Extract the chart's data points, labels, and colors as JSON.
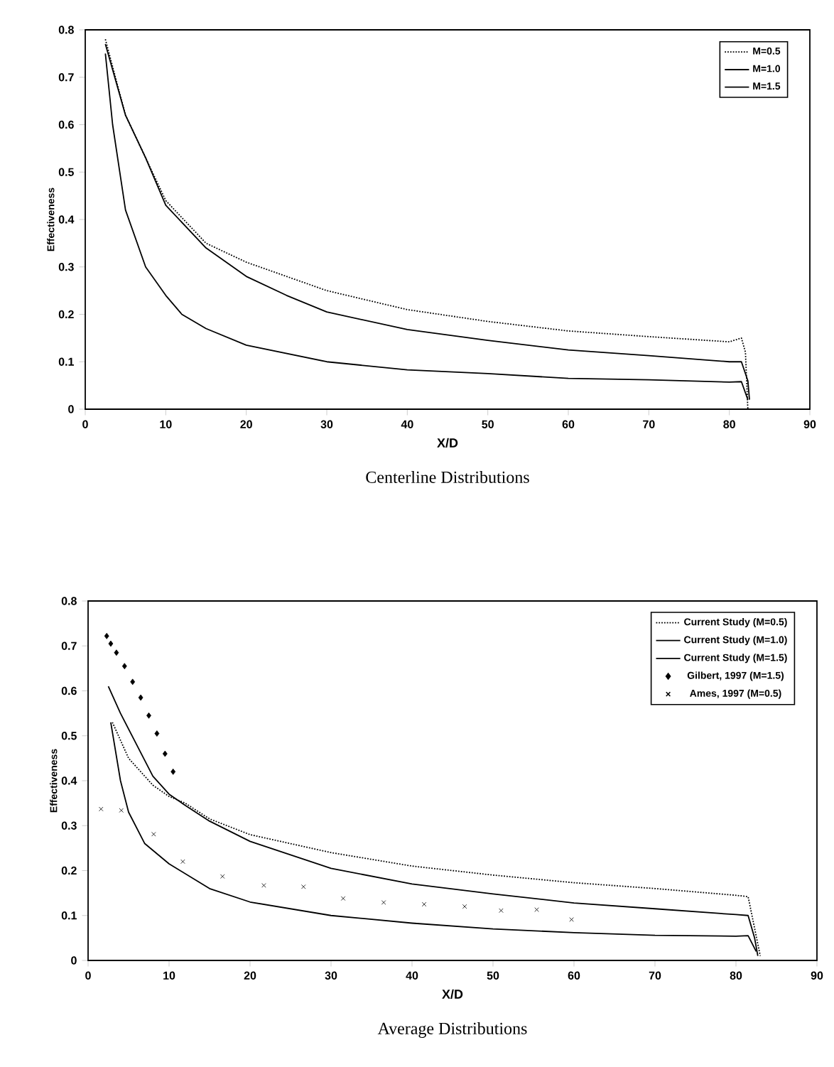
{
  "chart_data": [
    {
      "type": "line",
      "title": "Centerline Distributions",
      "xlabel": "X/D",
      "ylabel": "Effectiveness",
      "xlim": [
        0,
        90
      ],
      "ylim": [
        0,
        0.8
      ],
      "xticks": [
        0,
        10,
        20,
        30,
        40,
        50,
        60,
        70,
        80,
        90
      ],
      "yticks": [
        0,
        0.1,
        0.2,
        0.3,
        0.4,
        0.5,
        0.6,
        0.7,
        0.8
      ],
      "grid": false,
      "legend": "top right",
      "series": [
        {
          "name": "M=0.5",
          "color": "#000000",
          "line_style": "dotted",
          "x": [
            2.5,
            5,
            7.5,
            10,
            15,
            20,
            30,
            40,
            50,
            60,
            70,
            80,
            81.5,
            82,
            82.3
          ],
          "values": [
            0.78,
            0.62,
            0.53,
            0.44,
            0.35,
            0.31,
            0.25,
            0.21,
            0.185,
            0.165,
            0.153,
            0.142,
            0.15,
            0.12,
            0.0
          ]
        },
        {
          "name": "M=1.0",
          "color": "#000000",
          "line_style": "solid",
          "x": [
            2.5,
            5,
            7.5,
            10,
            15,
            20,
            25,
            30,
            40,
            50,
            60,
            70,
            80,
            81.5,
            82.3,
            82.5
          ],
          "values": [
            0.77,
            0.62,
            0.53,
            0.43,
            0.34,
            0.28,
            0.24,
            0.205,
            0.168,
            0.145,
            0.125,
            0.113,
            0.1,
            0.1,
            0.06,
            0.02
          ]
        },
        {
          "name": "M=1.5",
          "color": "#000000",
          "line_style": "solid",
          "x": [
            2.5,
            3.4,
            5,
            7.5,
            10,
            12,
            15,
            20,
            30,
            40,
            50,
            60,
            70,
            80,
            81.5,
            82.3
          ],
          "values": [
            0.75,
            0.6,
            0.42,
            0.3,
            0.24,
            0.2,
            0.17,
            0.135,
            0.1,
            0.083,
            0.075,
            0.065,
            0.062,
            0.057,
            0.058,
            0.02
          ]
        }
      ]
    },
    {
      "type": "line",
      "title": "Average Distributions",
      "xlabel": "X/D",
      "ylabel": "Effectiveness",
      "xlim": [
        0,
        90
      ],
      "ylim": [
        0,
        0.8
      ],
      "xticks": [
        0,
        10,
        20,
        30,
        40,
        50,
        60,
        70,
        80,
        90
      ],
      "yticks": [
        0,
        0.1,
        0.2,
        0.3,
        0.4,
        0.5,
        0.6,
        0.7,
        0.8
      ],
      "grid": false,
      "legend": "top right",
      "series": [
        {
          "name": "Current Study (M=0.5)",
          "color": "#000000",
          "line_style": "dotted",
          "x": [
            3,
            5,
            8,
            10,
            12,
            15,
            20,
            30,
            40,
            50,
            60,
            70,
            80,
            81.5,
            83
          ],
          "values": [
            0.53,
            0.45,
            0.39,
            0.365,
            0.35,
            0.315,
            0.28,
            0.24,
            0.21,
            0.19,
            0.173,
            0.16,
            0.145,
            0.142,
            0.01
          ]
        },
        {
          "name": "Current Study (M=1.0)",
          "color": "#000000",
          "line_style": "solid",
          "x": [
            2.5,
            4,
            6,
            8,
            10,
            12,
            15,
            20,
            30,
            40,
            50,
            60,
            70,
            80,
            81.5,
            82.3,
            82.7
          ],
          "values": [
            0.61,
            0.55,
            0.48,
            0.41,
            0.37,
            0.345,
            0.31,
            0.265,
            0.205,
            0.17,
            0.148,
            0.128,
            0.115,
            0.102,
            0.1,
            0.05,
            0.01
          ]
        },
        {
          "name": "Current Study (M=1.5)",
          "color": "#000000",
          "line_style": "solid",
          "x": [
            2.8,
            4,
            5,
            7,
            10,
            15,
            20,
            30,
            40,
            50,
            60,
            70,
            80,
            81.5,
            82.5
          ],
          "values": [
            0.53,
            0.4,
            0.33,
            0.26,
            0.215,
            0.16,
            0.13,
            0.1,
            0.083,
            0.07,
            0.062,
            0.056,
            0.054,
            0.055,
            0.02
          ]
        },
        {
          "name": "Gilbert, 1997 (M=1.5)",
          "type": "scatter",
          "marker": "diamond",
          "color": "#000000",
          "x": [
            2.3,
            2.8,
            3.5,
            4.5,
            5.5,
            6.5,
            7.5,
            8.5,
            9.5,
            10.5
          ],
          "values": [
            0.722,
            0.705,
            0.685,
            0.655,
            0.62,
            0.585,
            0.545,
            0.505,
            0.46,
            0.42
          ]
        },
        {
          "name": "Ames, 1997 (M=0.5)",
          "type": "scatter",
          "marker": "cross",
          "color": "#000000",
          "x": [
            1.6,
            4.1,
            8.1,
            11.7,
            16.6,
            21.7,
            26.6,
            31.5,
            36.5,
            41.5,
            46.5,
            51,
            55.4,
            59.7
          ],
          "values": [
            0.337,
            0.334,
            0.281,
            0.22,
            0.187,
            0.167,
            0.164,
            0.138,
            0.129,
            0.125,
            0.12,
            0.111,
            0.113,
            0.091
          ]
        }
      ]
    }
  ]
}
